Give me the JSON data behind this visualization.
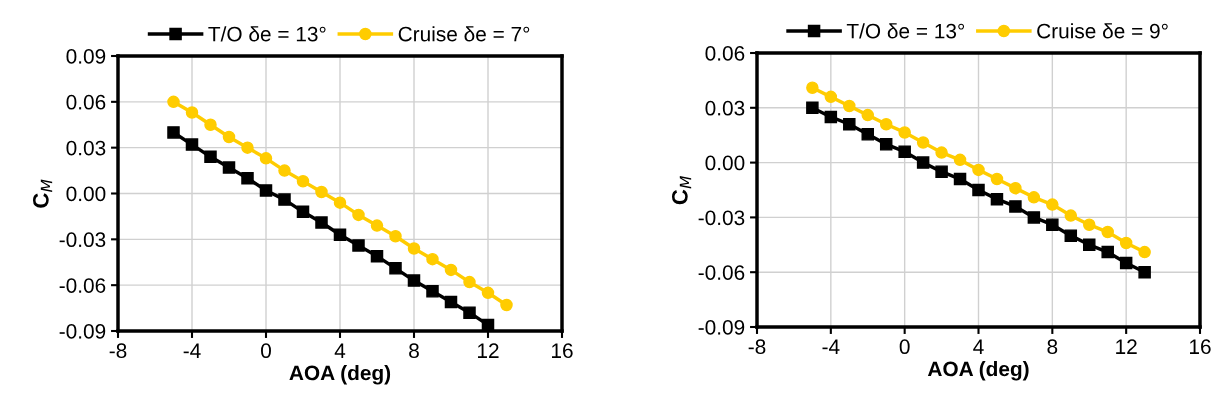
{
  "chart_data": [
    {
      "type": "line",
      "xlabel": "AOA (deg)",
      "ylabel": "C$_{M}$",
      "xlim": [
        -8,
        16
      ],
      "xticks": [
        -8,
        -4,
        0,
        4,
        8,
        12,
        16
      ],
      "ylim": [
        -0.09,
        0.09
      ],
      "yticks": [
        {
          "value": -0.09,
          "label": "-0.09"
        },
        {
          "value": -0.06,
          "label": "-0.06"
        },
        {
          "value": -0.03,
          "label": "-0.03"
        },
        {
          "value": 0,
          "label": "0.00"
        },
        {
          "value": 0.03,
          "label": "0.03"
        },
        {
          "value": 0.06,
          "label": "0.06"
        },
        {
          "value": 0.09,
          "label": "0.09"
        }
      ],
      "grid": true,
      "legend": "top",
      "x": [
        -5,
        -4,
        -3,
        -2,
        -1,
        0,
        1,
        2,
        3,
        4,
        5,
        6,
        7,
        8,
        9,
        10,
        11,
        12,
        13
      ],
      "series": [
        {
          "name": "T/O δe = 13°",
          "color": "#000000",
          "marker": "square",
          "values": [
            0.04,
            0.032,
            0.024,
            0.017,
            0.01,
            0.002,
            -0.004,
            -0.012,
            -0.019,
            -0.027,
            -0.034,
            -0.041,
            -0.049,
            -0.057,
            -0.064,
            -0.071,
            -0.078,
            -0.086,
            null
          ]
        },
        {
          "name": "Cruise δe = 7°",
          "color": "#ffcc00",
          "marker": "circle",
          "values": [
            0.06,
            0.053,
            0.045,
            0.037,
            0.03,
            0.023,
            0.015,
            0.008,
            0.001,
            -0.006,
            -0.014,
            -0.021,
            -0.028,
            -0.036,
            -0.043,
            -0.05,
            -0.058,
            -0.065,
            -0.073
          ]
        }
      ]
    },
    {
      "type": "line",
      "xlabel": "AOA (deg)",
      "ylabel": "C$_{M}$",
      "xlim": [
        -8,
        16
      ],
      "xticks": [
        -8,
        -4,
        0,
        4,
        8,
        12,
        16
      ],
      "ylim": [
        -0.09,
        0.06
      ],
      "yticks": [
        {
          "value": -0.09,
          "label": "-0.09"
        },
        {
          "value": -0.06,
          "label": "-0.06"
        },
        {
          "value": -0.03,
          "label": "-0.03"
        },
        {
          "value": 0,
          "label": "0.00"
        },
        {
          "value": 0.03,
          "label": "0.03"
        },
        {
          "value": 0.06,
          "label": "0.06"
        }
      ],
      "grid": true,
      "legend": "top",
      "x": [
        -5,
        -4,
        -3,
        -2,
        -1,
        0,
        1,
        2,
        3,
        4,
        5,
        6,
        7,
        8,
        9,
        10,
        11,
        12,
        13
      ],
      "series": [
        {
          "name": "T/O δe = 13°",
          "color": "#000000",
          "marker": "square",
          "values": [
            0.03,
            0.025,
            0.021,
            0.0155,
            0.01,
            0.006,
            0.0,
            -0.005,
            -0.009,
            -0.015,
            -0.02,
            -0.024,
            -0.03,
            -0.034,
            -0.04,
            -0.045,
            -0.049,
            -0.055,
            -0.06
          ]
        },
        {
          "name": "Cruise δe = 9°",
          "color": "#ffcc00",
          "marker": "circle",
          "values": [
            0.041,
            0.036,
            0.031,
            0.026,
            0.021,
            0.0165,
            0.011,
            0.0055,
            0.0015,
            -0.004,
            -0.009,
            -0.014,
            -0.019,
            -0.023,
            -0.029,
            -0.034,
            -0.038,
            -0.044,
            -0.049
          ]
        }
      ]
    }
  ]
}
